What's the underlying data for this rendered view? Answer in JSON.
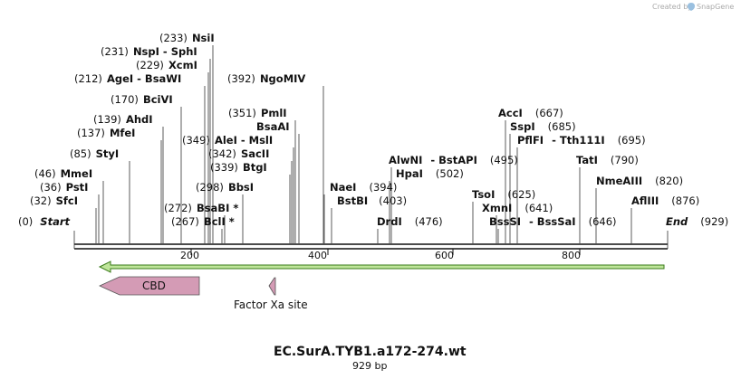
{
  "credit": {
    "prefix": "Created by",
    "brand": "SnapGene"
  },
  "plasmid": {
    "name": "EC.SurA.TYB1.a172-274.wt",
    "size_label": "929 bp",
    "length": 929
  },
  "axis_ticks": [
    {
      "pos": 200,
      "label": "200"
    },
    {
      "pos": 400,
      "label": "400"
    },
    {
      "pos": 600,
      "label": "600"
    },
    {
      "pos": 800,
      "label": "800"
    }
  ],
  "ends": {
    "start": {
      "num": "(0)",
      "name": "Start"
    },
    "end": {
      "name": "End",
      "num": "(929)"
    }
  },
  "sites_left": [
    {
      "num": "(32)",
      "name": "SfcI"
    },
    {
      "num": "(36)",
      "name": "PstI"
    },
    {
      "num": "(46)",
      "name": "MmeI"
    },
    {
      "num": "(85)",
      "name": "StyI"
    },
    {
      "num": "(137)",
      "name": "MfeI"
    },
    {
      "num": "(139)",
      "name": "AhdI"
    },
    {
      "num": "(170)",
      "name": "BciVI"
    },
    {
      "num": "(212)",
      "name": "AgeI",
      "extra": " - BsaWI"
    },
    {
      "num": "(229)",
      "name": "XcmI"
    },
    {
      "num": "(231)",
      "name": "NspI",
      "extra": " - SphI"
    },
    {
      "num": "(233)",
      "name": "NsiI"
    },
    {
      "num": "(267)",
      "name": "BclI *"
    },
    {
      "num": "(272)",
      "name": "BsaBI *"
    },
    {
      "num": "(298)",
      "name": "BbsI"
    },
    {
      "num": "(339)",
      "name": "BtgI"
    },
    {
      "num": "(342)",
      "name": "SacII"
    },
    {
      "num": "(349)",
      "name": "AleI",
      "extra": " - MslI"
    },
    {
      "num": "(351)",
      "name": "PmlI"
    },
    {
      "num": "(392)",
      "name": "NgoMIV"
    },
    {
      "num": "",
      "name": "BsaAI"
    }
  ],
  "sites_right": [
    {
      "name": "NaeI",
      "num": "(394)"
    },
    {
      "name": "BstBI",
      "num": "(403)"
    },
    {
      "name": "DrdI",
      "num": "(476)"
    },
    {
      "name": "HpaI",
      "num": "(502)"
    },
    {
      "name": "AlwNI",
      "extra": " - BstAPI",
      "num": "(495)"
    },
    {
      "name": "TsoI",
      "num": "(625)"
    },
    {
      "name": "XmnI",
      "num": "(641)"
    },
    {
      "name": "BssSI",
      "extra": " - BssSaI",
      "num": "(646)"
    },
    {
      "name": "AccI",
      "num": "(667)"
    },
    {
      "name": "SspI",
      "num": "(685)"
    },
    {
      "name": "PflFI",
      "extra": " - Tth111I",
      "num": "(695)"
    },
    {
      "name": "TatI",
      "num": "(790)"
    },
    {
      "name": "NmeAIII",
      "num": "(820)"
    },
    {
      "name": "AflIII",
      "num": "(876)"
    }
  ],
  "features": [
    {
      "name": "CBD",
      "start": 40,
      "end": 200,
      "direction": "reverse",
      "color": "#d49bb5"
    },
    {
      "name": "Factor Xa site",
      "start": 305,
      "end": 316,
      "direction": "reverse",
      "color": "#d49bb5"
    }
  ],
  "orf": {
    "start": 40,
    "end": 929,
    "direction": "reverse",
    "color": "#bfe59a",
    "stroke": "#3a7a1a"
  }
}
